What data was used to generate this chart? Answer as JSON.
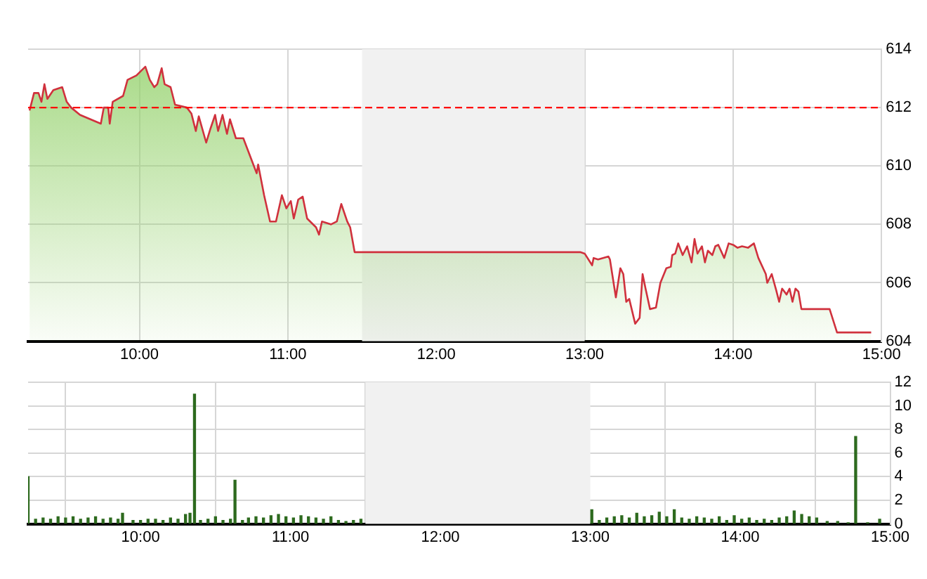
{
  "chart_data": [
    {
      "type": "area",
      "x": [
        9.26,
        9.29,
        9.32,
        9.34,
        9.36,
        9.38,
        9.42,
        9.48,
        9.51,
        9.54,
        9.6,
        9.67,
        9.74,
        9.76,
        9.79,
        9.8,
        9.82,
        9.89,
        9.92,
        9.98,
        10.04,
        10.07,
        10.1,
        10.12,
        10.15,
        10.17,
        10.21,
        10.24,
        10.32,
        10.35,
        10.38,
        10.4,
        10.45,
        10.48,
        10.51,
        10.53,
        10.56,
        10.59,
        10.61,
        10.65,
        10.7,
        10.76,
        10.79,
        10.8,
        10.84,
        10.88,
        10.92,
        10.96,
        10.99,
        11.02,
        11.04,
        11.07,
        11.1,
        11.13,
        11.19,
        11.21,
        11.23,
        11.29,
        11.33,
        11.36,
        11.4,
        11.42,
        11.45,
        12.97,
        13.0,
        13.05,
        13.06,
        13.09,
        13.16,
        13.17,
        13.21,
        13.24,
        13.26,
        13.28,
        13.3,
        13.34,
        13.37,
        13.39,
        13.41,
        13.44,
        13.48,
        13.51,
        13.55,
        13.58,
        13.59,
        13.61,
        13.63,
        13.66,
        13.69,
        13.72,
        13.74,
        13.76,
        13.79,
        13.81,
        13.83,
        13.86,
        13.88,
        13.9,
        13.94,
        13.97,
        14.0,
        14.03,
        14.06,
        14.1,
        14.14,
        14.17,
        14.22,
        14.23,
        14.26,
        14.29,
        14.31,
        14.33,
        14.36,
        14.38,
        14.4,
        14.42,
        14.44,
        14.46,
        14.65,
        14.7,
        14.93
      ],
      "series": [
        {
          "color": "#d0313d",
          "values": [
            611.9,
            612.5,
            612.5,
            612.2,
            612.8,
            612.3,
            612.6,
            612.7,
            612.2,
            612.0,
            611.75,
            611.6,
            611.45,
            612.0,
            612.0,
            611.45,
            612.2,
            612.4,
            612.95,
            613.1,
            613.4,
            612.95,
            612.7,
            612.8,
            613.35,
            612.8,
            612.7,
            612.1,
            612.0,
            611.8,
            611.2,
            611.7,
            610.8,
            611.3,
            611.75,
            611.2,
            611.75,
            611.1,
            611.6,
            610.95,
            610.95,
            610.15,
            609.75,
            610.05,
            609.0,
            608.1,
            608.1,
            609.0,
            608.55,
            608.8,
            608.2,
            608.85,
            608.95,
            608.2,
            607.9,
            607.65,
            608.1,
            608.0,
            608.1,
            608.7,
            608.1,
            607.9,
            607.05,
            607.05,
            607.0,
            606.6,
            606.85,
            606.8,
            606.9,
            606.8,
            605.5,
            606.5,
            606.3,
            605.35,
            605.45,
            604.6,
            604.8,
            606.3,
            605.8,
            605.1,
            605.15,
            606.0,
            606.5,
            606.55,
            606.95,
            607.0,
            607.35,
            606.95,
            607.25,
            606.7,
            607.5,
            607.0,
            607.25,
            606.7,
            607.1,
            606.95,
            607.25,
            607.3,
            606.85,
            607.35,
            607.3,
            607.2,
            607.25,
            607.2,
            607.35,
            606.85,
            606.3,
            606.0,
            606.3,
            605.75,
            605.35,
            605.8,
            605.6,
            605.8,
            605.35,
            605.8,
            605.7,
            605.1,
            605.1,
            604.3,
            604.3
          ]
        }
      ],
      "xlim": [
        9.25,
        15
      ],
      "xticks": [
        {
          "value": 10,
          "label": "10:00"
        },
        {
          "value": 11,
          "label": "11:00"
        },
        {
          "value": 12,
          "label": "12:00"
        },
        {
          "value": 13,
          "label": "13:00"
        },
        {
          "value": 14,
          "label": "14:00"
        },
        {
          "value": 15,
          "label": "15:00"
        }
      ],
      "ylim": [
        604,
        614
      ],
      "yticks": [
        604,
        606,
        608,
        610,
        612,
        614
      ],
      "grid": true,
      "ref_lines": [
        {
          "axis": "y",
          "value": 612,
          "color": "#ff0000",
          "line_style": "dashed"
        }
      ],
      "bands": [
        {
          "axis": "x",
          "from": 11.5,
          "to": 13,
          "color": "#f1f1f1"
        }
      ]
    },
    {
      "type": "bar",
      "x": [
        9.25,
        9.3,
        9.35,
        9.4,
        9.45,
        9.5,
        9.55,
        9.6,
        9.65,
        9.7,
        9.75,
        9.8,
        9.85,
        9.88,
        9.95,
        10.0,
        10.05,
        10.1,
        10.15,
        10.2,
        10.25,
        10.3,
        10.33,
        10.36,
        10.4,
        10.45,
        10.5,
        10.55,
        10.6,
        10.63,
        10.68,
        10.72,
        10.77,
        10.82,
        10.87,
        10.92,
        10.97,
        11.02,
        11.07,
        11.12,
        11.17,
        11.22,
        11.27,
        11.32,
        11.37,
        11.42,
        11.47,
        13.01,
        13.06,
        13.11,
        13.16,
        13.21,
        13.26,
        13.31,
        13.36,
        13.41,
        13.46,
        13.51,
        13.56,
        13.61,
        13.66,
        13.71,
        13.76,
        13.81,
        13.86,
        13.91,
        13.96,
        14.01,
        14.06,
        14.11,
        14.16,
        14.21,
        14.26,
        14.31,
        14.36,
        14.41,
        14.46,
        14.51,
        14.58,
        14.65,
        14.72,
        14.77,
        14.85,
        14.93
      ],
      "values": [
        4.0,
        0.4,
        0.5,
        0.4,
        0.6,
        0.5,
        0.6,
        0.4,
        0.5,
        0.6,
        0.4,
        0.5,
        0.4,
        0.9,
        0.3,
        0.3,
        0.4,
        0.4,
        0.3,
        0.5,
        0.4,
        0.8,
        0.9,
        11.0,
        0.3,
        0.4,
        0.6,
        0.3,
        0.4,
        3.7,
        0.3,
        0.5,
        0.6,
        0.5,
        0.7,
        0.8,
        0.6,
        0.5,
        0.7,
        0.6,
        0.5,
        0.4,
        0.6,
        0.3,
        0.2,
        0.3,
        0.4,
        1.2,
        0.3,
        0.5,
        0.6,
        0.7,
        0.5,
        0.9,
        0.6,
        0.7,
        1.0,
        0.6,
        1.2,
        0.5,
        0.4,
        0.6,
        0.5,
        0.4,
        0.6,
        0.3,
        0.7,
        0.4,
        0.5,
        0.3,
        0.4,
        0.3,
        0.5,
        0.6,
        1.1,
        0.8,
        0.6,
        0.5,
        0.2,
        0.2,
        0.1,
        7.4,
        0.1,
        0.4
      ],
      "color": "#2d6a1e",
      "xlim": [
        9.25,
        15
      ],
      "xticks": [
        {
          "value": 10,
          "label": "10:00"
        },
        {
          "value": 11,
          "label": "11:00"
        },
        {
          "value": 12,
          "label": "12:00"
        },
        {
          "value": 13,
          "label": "13:00"
        },
        {
          "value": 14,
          "label": "14:00"
        },
        {
          "value": 15,
          "label": "15:00"
        }
      ],
      "ylim": [
        0,
        12
      ],
      "yticks": [
        0,
        2,
        4,
        6,
        8,
        10,
        12
      ],
      "grid": true,
      "bands": [
        {
          "axis": "x",
          "from": 11.5,
          "to": 13,
          "color": "#f1f1f1"
        }
      ]
    }
  ]
}
